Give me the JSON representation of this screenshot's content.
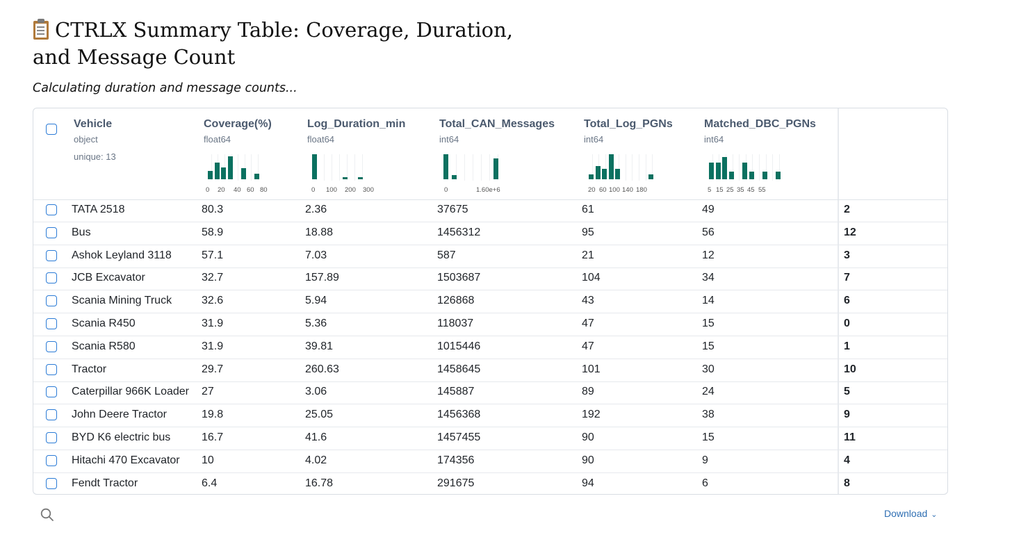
{
  "title": "CTRLX Summary Table: Coverage, Duration, and Message Count",
  "title_icon": "clipboard-icon",
  "subtitle": "Calculating duration and message counts...",
  "colors": {
    "accent": "#0b7160",
    "checkbox": "#2b7bd6",
    "header_text": "#4b5a6e",
    "link": "#2f6fb3"
  },
  "columns": [
    {
      "name": "Vehicle",
      "dtype": "object",
      "summary": "unique: 13"
    },
    {
      "name": "Coverage(%)",
      "dtype": "float64",
      "hist": [
        0.34,
        0.66,
        0.46,
        0.92,
        0,
        0.44,
        0,
        0.22
      ],
      "ticks": [
        "0",
        "20",
        "40",
        "60",
        "80"
      ]
    },
    {
      "name": "Log_Duration_min",
      "dtype": "float64",
      "hist": [
        1,
        0,
        0,
        0,
        0.09,
        0,
        0.09
      ],
      "ticks": [
        "0",
        "100",
        "200",
        "300"
      ]
    },
    {
      "name": "Total_CAN_Messages",
      "dtype": "int64",
      "hist": [
        1,
        0.16,
        0,
        0,
        0,
        0,
        0.82
      ],
      "ticks": [
        "0",
        "1.60e+6"
      ]
    },
    {
      "name": "Total_Log_PGNs",
      "dtype": "int64",
      "hist": [
        0.2,
        0.52,
        0.42,
        1,
        0.42,
        0,
        0,
        0,
        0,
        0.2
      ],
      "ticks": [
        "20",
        "60",
        "100",
        "140",
        "180"
      ]
    },
    {
      "name": "Matched_DBC_PGNs",
      "dtype": "int64",
      "hist": [
        0.66,
        0.66,
        0.9,
        0.3,
        0,
        0.66,
        0.3,
        0,
        0.3,
        0,
        0.3
      ],
      "ticks": [
        "5",
        "15",
        "25",
        "35",
        "45",
        "55"
      ]
    }
  ],
  "rows": [
    {
      "vehicle": "TATA 2518",
      "coverage": "80.3",
      "duration": "2.36",
      "messages": "37675",
      "log_pgns": "61",
      "dbc_pgns": "49",
      "index": "2"
    },
    {
      "vehicle": "Bus",
      "coverage": "58.9",
      "duration": "18.88",
      "messages": "1456312",
      "log_pgns": "95",
      "dbc_pgns": "56",
      "index": "12"
    },
    {
      "vehicle": "Ashok Leyland 3118",
      "coverage": "57.1",
      "duration": "7.03",
      "messages": "587",
      "log_pgns": "21",
      "dbc_pgns": "12",
      "index": "3"
    },
    {
      "vehicle": "JCB Excavator",
      "coverage": "32.7",
      "duration": "157.89",
      "messages": "1503687",
      "log_pgns": "104",
      "dbc_pgns": "34",
      "index": "7"
    },
    {
      "vehicle": "Scania Mining Truck",
      "coverage": "32.6",
      "duration": "5.94",
      "messages": "126868",
      "log_pgns": "43",
      "dbc_pgns": "14",
      "index": "6"
    },
    {
      "vehicle": "Scania R450",
      "coverage": "31.9",
      "duration": "5.36",
      "messages": "118037",
      "log_pgns": "47",
      "dbc_pgns": "15",
      "index": "0"
    },
    {
      "vehicle": "Scania R580",
      "coverage": "31.9",
      "duration": "39.81",
      "messages": "1015446",
      "log_pgns": "47",
      "dbc_pgns": "15",
      "index": "1"
    },
    {
      "vehicle": "Tractor",
      "coverage": "29.7",
      "duration": "260.63",
      "messages": "1458645",
      "log_pgns": "101",
      "dbc_pgns": "30",
      "index": "10"
    },
    {
      "vehicle": "Caterpillar 966K Loader",
      "coverage": "27",
      "duration": "3.06",
      "messages": "145887",
      "log_pgns": "89",
      "dbc_pgns": "24",
      "index": "5"
    },
    {
      "vehicle": "John Deere Tractor",
      "coverage": "19.8",
      "duration": "25.05",
      "messages": "1456368",
      "log_pgns": "192",
      "dbc_pgns": "38",
      "index": "9"
    },
    {
      "vehicle": "BYD K6 electric bus",
      "coverage": "16.7",
      "duration": "41.6",
      "messages": "1457455",
      "log_pgns": "90",
      "dbc_pgns": "15",
      "index": "11"
    },
    {
      "vehicle": "Hitachi 470 Excavator",
      "coverage": "10",
      "duration": "4.02",
      "messages": "174356",
      "log_pgns": "90",
      "dbc_pgns": "9",
      "index": "4"
    },
    {
      "vehicle": "Fendt Tractor",
      "coverage": "6.4",
      "duration": "16.78",
      "messages": "291675",
      "log_pgns": "94",
      "dbc_pgns": "6",
      "index": "8"
    }
  ],
  "footer": {
    "search_icon": "search-icon",
    "download_label": "Download",
    "download_icon": "chevron-down-icon"
  }
}
